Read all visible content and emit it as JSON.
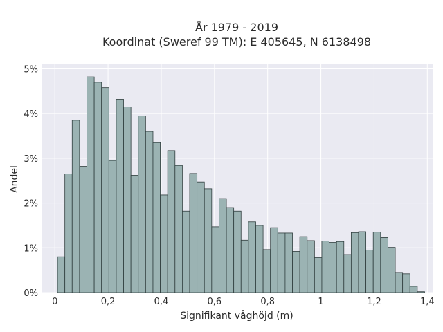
{
  "chart_data": {
    "type": "bar",
    "title_line1": "År 1979 - 2019",
    "title_line2": "Koordinat (Sweref 99 TM): E 405645, N 6138498",
    "xlabel": "Signifikant våghöjd (m)",
    "ylabel": "Andel",
    "xlim": [
      -0.05,
      1.42
    ],
    "ylim": [
      0,
      5.1
    ],
    "grid": true,
    "x_ticks": [
      {
        "value": 0,
        "label": "0"
      },
      {
        "value": 0.2,
        "label": "0,2"
      },
      {
        "value": 0.4,
        "label": "0,4"
      },
      {
        "value": 0.6,
        "label": "0,6"
      },
      {
        "value": 0.8,
        "label": "0,8"
      },
      {
        "value": 1.0,
        "label": "1"
      },
      {
        "value": 1.2,
        "label": "1,2"
      },
      {
        "value": 1.4,
        "label": "1,4"
      }
    ],
    "y_ticks": [
      {
        "value": 0,
        "label": "0%"
      },
      {
        "value": 1,
        "label": "1%"
      },
      {
        "value": 2,
        "label": "2%"
      },
      {
        "value": 3,
        "label": "3%"
      },
      {
        "value": 4,
        "label": "4%"
      },
      {
        "value": 5,
        "label": "5%"
      }
    ],
    "bin_start": 0.01,
    "bin_width": 0.0276,
    "values": [
      0.8,
      2.65,
      3.85,
      2.82,
      4.82,
      4.7,
      4.58,
      2.95,
      4.32,
      4.15,
      2.62,
      3.95,
      3.6,
      3.35,
      2.18,
      3.17,
      2.84,
      1.82,
      2.66,
      2.47,
      2.32,
      1.47,
      2.1,
      1.9,
      1.82,
      1.17,
      1.58,
      1.5,
      0.96,
      1.45,
      1.33,
      1.33,
      0.92,
      1.25,
      1.16,
      0.78,
      1.15,
      1.12,
      1.14,
      0.85,
      1.34,
      1.36,
      0.95,
      1.35,
      1.23,
      1.01,
      0.45,
      0.42,
      0.14,
      0.02
    ],
    "colors": {
      "bar_fill": "#9bb3b3",
      "bar_stroke": "#2f3d3d",
      "plot_bg": "#eaeaf2",
      "grid": "#ffffff"
    }
  }
}
